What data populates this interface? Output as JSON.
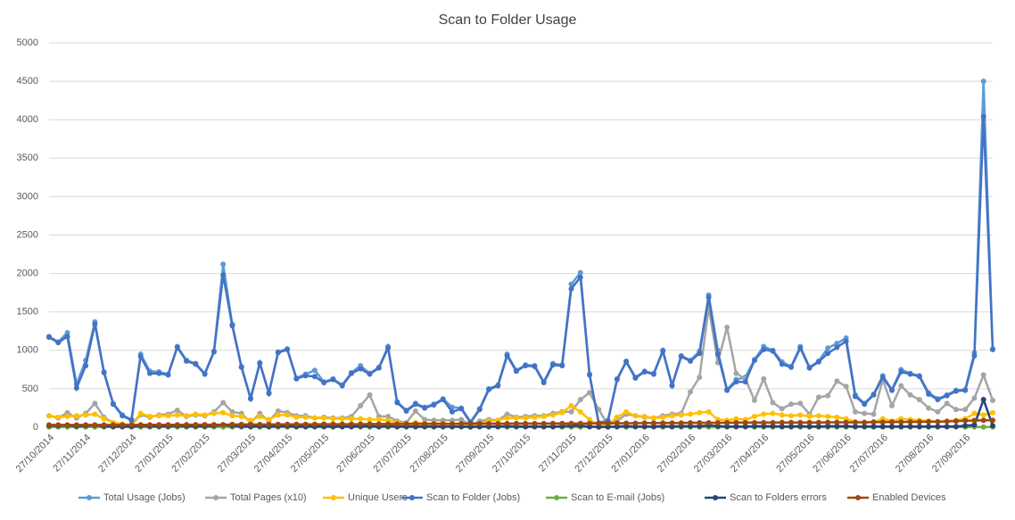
{
  "chart_data": {
    "type": "line",
    "title": "Scan to Folder Usage",
    "categories": [
      "27/10/2014",
      null,
      null,
      null,
      "27/11/2014",
      null,
      null,
      null,
      null,
      "27/12/2014",
      null,
      null,
      null,
      "27/01/2015",
      null,
      null,
      null,
      "27/02/2015",
      null,
      null,
      null,
      null,
      "27/03/2015",
      null,
      null,
      null,
      "27/04/2015",
      null,
      null,
      null,
      "27/05/2015",
      null,
      null,
      null,
      null,
      "27/06/2015",
      null,
      null,
      null,
      "27/07/2015",
      null,
      null,
      null,
      "27/08/2015",
      null,
      null,
      null,
      null,
      "27/09/2015",
      null,
      null,
      null,
      "27/10/2015",
      null,
      null,
      null,
      null,
      "27/11/2015",
      null,
      null,
      null,
      "27/12/2015",
      null,
      null,
      null,
      "27/01/2016",
      null,
      null,
      null,
      null,
      "27/02/2016",
      null,
      null,
      null,
      "27/03/2016",
      null,
      null,
      null,
      "27/04/2016",
      null,
      null,
      null,
      null,
      "27/05/2016",
      null,
      null,
      null,
      "27/06/2016",
      null,
      null,
      null,
      "27/07/2016",
      null,
      null,
      null,
      null,
      "27/08/2016",
      null,
      null,
      null,
      "27/09/2016",
      null,
      null,
      null
    ],
    "ylim": [
      0,
      5000
    ],
    "yticks": [
      0,
      500,
      1000,
      1500,
      2000,
      2500,
      3000,
      3500,
      4000,
      4500,
      5000
    ],
    "grid": true,
    "series": [
      {
        "name": "Total Usage (Jobs)",
        "color": "#5b9bd5",
        "values": [
          1180,
          1110,
          1230,
          560,
          870,
          1370,
          720,
          310,
          160,
          100,
          950,
          730,
          720,
          690,
          1050,
          870,
          830,
          700,
          990,
          2120,
          1340,
          790,
          380,
          840,
          450,
          980,
          1020,
          640,
          690,
          740,
          590,
          630,
          550,
          710,
          800,
          700,
          780,
          1050,
          330,
          220,
          310,
          260,
          300,
          370,
          260,
          250,
          70,
          240,
          500,
          550,
          950,
          740,
          810,
          800,
          590,
          830,
          810,
          1860,
          2010,
          690,
          60,
          90,
          630,
          860,
          650,
          730,
          700,
          1000,
          550,
          930,
          870,
          990,
          1720,
          1000,
          490,
          620,
          650,
          880,
          1050,
          1000,
          850,
          790,
          1050,
          780,
          860,
          1030,
          1090,
          1160,
          420,
          310,
          430,
          670,
          490,
          750,
          700,
          670,
          450,
          370,
          420,
          480,
          490,
          970,
          4500,
          1020
        ]
      },
      {
        "name": "Total Pages (x10)",
        "color": "#a5a5a5",
        "values": [
          150,
          120,
          190,
          120,
          180,
          310,
          130,
          60,
          40,
          30,
          160,
          130,
          160,
          170,
          220,
          140,
          160,
          150,
          200,
          320,
          200,
          180,
          60,
          180,
          80,
          210,
          190,
          150,
          150,
          120,
          130,
          120,
          120,
          140,
          280,
          420,
          140,
          140,
          80,
          60,
          210,
          100,
          90,
          90,
          90,
          100,
          30,
          80,
          100,
          90,
          170,
          130,
          140,
          150,
          150,
          180,
          200,
          200,
          360,
          450,
          230,
          30,
          80,
          170,
          150,
          130,
          120,
          150,
          170,
          180,
          460,
          650,
          1560,
          840,
          1300,
          700,
          630,
          350,
          630,
          320,
          240,
          300,
          310,
          170,
          390,
          410,
          600,
          530,
          200,
          180,
          170,
          620,
          280,
          540,
          420,
          360,
          250,
          200,
          310,
          230,
          230,
          380,
          680,
          350
        ]
      },
      {
        "name": "Unique Users",
        "color": "#ffc000",
        "values": [
          150,
          130,
          140,
          150,
          160,
          170,
          110,
          60,
          40,
          30,
          180,
          140,
          150,
          150,
          160,
          150,
          170,
          160,
          180,
          190,
          150,
          140,
          90,
          140,
          100,
          160,
          160,
          130,
          130,
          120,
          120,
          110,
          110,
          110,
          110,
          100,
          100,
          90,
          60,
          40,
          60,
          50,
          50,
          50,
          40,
          50,
          20,
          50,
          80,
          90,
          120,
          120,
          120,
          130,
          140,
          160,
          190,
          280,
          200,
          100,
          20,
          30,
          130,
          200,
          150,
          140,
          120,
          130,
          150,
          160,
          170,
          190,
          200,
          100,
          90,
          110,
          100,
          140,
          170,
          180,
          160,
          150,
          160,
          140,
          150,
          140,
          130,
          110,
          70,
          60,
          70,
          110,
          80,
          110,
          100,
          90,
          80,
          70,
          80,
          90,
          110,
          180,
          160,
          190
        ]
      },
      {
        "name": "Scan to Folder (Jobs)",
        "color": "#4472c4",
        "values": [
          1170,
          1100,
          1180,
          510,
          800,
          1340,
          710,
          300,
          150,
          90,
          920,
          700,
          700,
          680,
          1040,
          860,
          820,
          690,
          980,
          1980,
          1320,
          780,
          370,
          830,
          440,
          970,
          1010,
          630,
          670,
          660,
          580,
          620,
          540,
          700,
          760,
          690,
          770,
          1030,
          320,
          210,
          300,
          250,
          290,
          360,
          200,
          240,
          60,
          230,
          490,
          540,
          930,
          730,
          800,
          790,
          580,
          810,
          800,
          1800,
          1950,
          680,
          50,
          80,
          620,
          850,
          640,
          720,
          690,
          990,
          540,
          920,
          860,
          960,
          1690,
          950,
          480,
          590,
          590,
          870,
          1010,
          990,
          820,
          780,
          1030,
          770,
          850,
          960,
          1040,
          1120,
          400,
          300,
          420,
          650,
          480,
          720,
          690,
          660,
          430,
          360,
          410,
          470,
          480,
          930,
          4040,
          1010
        ]
      },
      {
        "name": "Scan to E-mail (Jobs)",
        "color": "#70ad47",
        "values": [
          3,
          3,
          3,
          3,
          3,
          3,
          3,
          3,
          3,
          3,
          3,
          3,
          3,
          3,
          3,
          3,
          3,
          3,
          3,
          3,
          3,
          3,
          3,
          3,
          3,
          3,
          3,
          3,
          3,
          3,
          3,
          3,
          3,
          3,
          3,
          3,
          3,
          3,
          3,
          3,
          3,
          3,
          3,
          3,
          3,
          3,
          3,
          3,
          3,
          3,
          3,
          3,
          3,
          3,
          3,
          3,
          3,
          3,
          3,
          3,
          3,
          3,
          3,
          3,
          3,
          3,
          3,
          3,
          3,
          3,
          3,
          3,
          3,
          3,
          3,
          3,
          3,
          3,
          3,
          3,
          3,
          3,
          3,
          3,
          3,
          3,
          3,
          3,
          3,
          3,
          3,
          3,
          3,
          3,
          3,
          3,
          3,
          3,
          3,
          3,
          3,
          3,
          3,
          3
        ]
      },
      {
        "name": "Scan to Folders errors",
        "color": "#264478",
        "values": [
          20,
          20,
          25,
          15,
          20,
          25,
          15,
          10,
          10,
          10,
          20,
          15,
          15,
          15,
          20,
          15,
          15,
          15,
          20,
          30,
          20,
          15,
          10,
          15,
          10,
          15,
          15,
          10,
          10,
          10,
          10,
          10,
          10,
          10,
          15,
          15,
          10,
          15,
          10,
          10,
          10,
          10,
          10,
          10,
          10,
          10,
          5,
          10,
          10,
          10,
          15,
          10,
          10,
          10,
          10,
          10,
          15,
          20,
          20,
          10,
          5,
          5,
          10,
          15,
          10,
          10,
          10,
          15,
          10,
          15,
          15,
          15,
          25,
          15,
          10,
          10,
          10,
          15,
          15,
          15,
          10,
          10,
          15,
          10,
          10,
          15,
          15,
          15,
          10,
          10,
          10,
          10,
          10,
          10,
          10,
          10,
          10,
          10,
          10,
          10,
          20,
          30,
          360,
          20
        ]
      },
      {
        "name": "Enabled Devices",
        "color": "#9e480e",
        "values": [
          30,
          30,
          30,
          30,
          30,
          30,
          30,
          30,
          30,
          30,
          32,
          32,
          32,
          32,
          32,
          34,
          34,
          34,
          34,
          34,
          36,
          36,
          36,
          36,
          36,
          38,
          38,
          38,
          38,
          38,
          40,
          40,
          40,
          40,
          40,
          42,
          42,
          42,
          42,
          42,
          44,
          44,
          44,
          44,
          44,
          46,
          46,
          46,
          46,
          46,
          48,
          48,
          48,
          48,
          48,
          50,
          50,
          50,
          50,
          50,
          52,
          52,
          52,
          52,
          52,
          55,
          55,
          55,
          55,
          55,
          58,
          58,
          58,
          58,
          58,
          60,
          60,
          60,
          60,
          60,
          62,
          62,
          62,
          62,
          62,
          64,
          64,
          64,
          64,
          64,
          66,
          66,
          68,
          68,
          70,
          70,
          72,
          72,
          75,
          80,
          85,
          88,
          90,
          90
        ]
      }
    ]
  }
}
